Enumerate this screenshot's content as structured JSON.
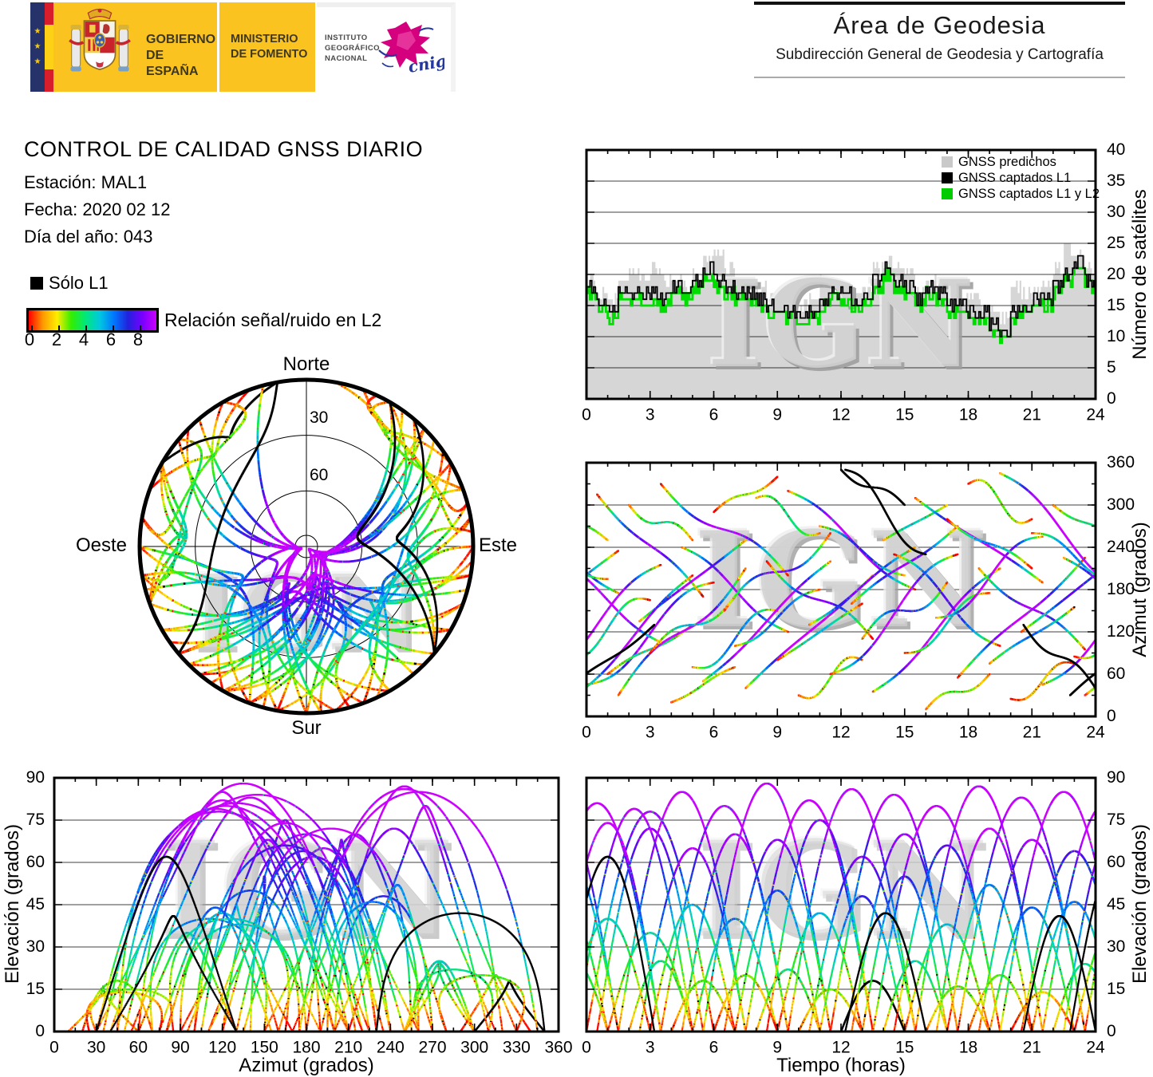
{
  "logo_bar": {
    "gobierno_line1": "GOBIERNO",
    "gobierno_line2": "DE ESPAÑA",
    "ministerio_line1": "MINISTERIO",
    "ministerio_line2": "DE FOMENTO",
    "ign_line1": "INSTITUTO",
    "ign_line2": "GEOGRÁFICO",
    "ign_line3": "NACIONAL",
    "cnig_text": "cnig"
  },
  "area_header": {
    "title": "Área de Geodesia",
    "subtitle": "Subdirección General de Geodesia y Cartografía"
  },
  "report": {
    "title": "CONTROL DE CALIDAD GNSS DIARIO",
    "station": "Estación: MAL1",
    "date": "Fecha: 2020 02 12",
    "doy": "Día del año: 043"
  },
  "l1_legend": "Sólo L1",
  "colorbar": {
    "label": "Relación señal/ruido en L2",
    "ticks": [
      "0",
      "2",
      "4",
      "6",
      "8"
    ],
    "stops": [
      "#ff0000",
      "#ff9900",
      "#ffee00",
      "#33ee00",
      "#00e87a",
      "#00c8e0",
      "#0077ff",
      "#2222dd",
      "#7700ff",
      "#cc00ff"
    ]
  },
  "skyplot_labels": {
    "north": "Norte",
    "south": "Sur",
    "west": "Oeste",
    "east": "Este",
    "ring30": "30",
    "ring60": "60"
  },
  "count_legend": [
    {
      "label": "GNSS predichos",
      "color": "#c9c9c9"
    },
    {
      "label": "GNSS captados L1",
      "color": "#000000"
    },
    {
      "label": "GNSS captados L1 y L2",
      "color": "#00cc00"
    }
  ],
  "watermark": "IGN",
  "axis_titles": {
    "count_y": "Número de satélites",
    "az_y": "Azimut (grados)",
    "elaz_x": "Azimut (grados)",
    "elaz_y": "Elevación (grados)",
    "eltime_x": "Tiempo (horas)",
    "eltime_y": "Elevación (grados)"
  },
  "chart_data": [
    {
      "id": "sat_count",
      "type": "area",
      "x": {
        "min": 0,
        "max": 24,
        "ticks": [
          0,
          3,
          6,
          9,
          12,
          15,
          18,
          21,
          24
        ],
        "minor_step": 1
      },
      "y": {
        "min": 0,
        "max": 40,
        "ticks": [
          0,
          5,
          10,
          15,
          20,
          25,
          30,
          35,
          40
        ],
        "label": "Número de satélites"
      },
      "legend_position": "top-right",
      "grid": "horizontal",
      "series_t_step_hours": 0.5,
      "series": [
        {
          "name": "GNSS predichos",
          "color": "#d6d6d6",
          "style": "filled-steps",
          "values": [
            19,
            17,
            16,
            19,
            21,
            19,
            21,
            19,
            19,
            18,
            20,
            23,
            23,
            21,
            18,
            18,
            18,
            16,
            15,
            15,
            15,
            16,
            19,
            18,
            19,
            17,
            17,
            21,
            22,
            21,
            20,
            17,
            19,
            18,
            18,
            16,
            17,
            15,
            14,
            13,
            18,
            17,
            17,
            18,
            21,
            24,
            23,
            21,
            20
          ]
        },
        {
          "name": "GNSS captados L1",
          "color": "#000000",
          "style": "steps",
          "values": [
            18,
            16,
            14,
            17,
            17,
            17,
            17,
            16,
            18,
            17,
            19,
            21,
            19,
            18,
            17,
            17,
            16,
            15,
            14,
            14,
            14,
            14,
            16,
            17,
            17,
            15,
            16,
            19,
            21,
            19,
            18,
            16,
            18,
            17,
            15,
            15,
            14,
            14,
            12,
            11,
            14,
            15,
            16,
            16,
            18,
            20,
            22,
            19,
            19
          ]
        },
        {
          "name": "GNSS captados L1 y L2",
          "color": "#00dd00",
          "style": "steps",
          "values": [
            17,
            15,
            13,
            16,
            16,
            16,
            16,
            15,
            17,
            16,
            18,
            20,
            18,
            17,
            16,
            16,
            15,
            14,
            13,
            13,
            13,
            13,
            15,
            16,
            16,
            14,
            15,
            18,
            20,
            18,
            17,
            15,
            17,
            16,
            14,
            14,
            13,
            13,
            11,
            10,
            13,
            14,
            15,
            15,
            17,
            19,
            21,
            18,
            18
          ]
        }
      ]
    },
    {
      "id": "skyplot",
      "type": "scatter",
      "projection": "polar-elevation",
      "rings_deg": [
        30,
        60
      ],
      "center_ring_deg": 84,
      "labels": {
        "top": "Norte",
        "bottom": "Sur",
        "left": "Oeste",
        "right": "Este"
      },
      "tracks_ref": "satellite_passes",
      "color_by": "snr_l2_colormap"
    },
    {
      "id": "az_time",
      "type": "scatter",
      "x": {
        "min": 0,
        "max": 24,
        "ticks": [
          0,
          3,
          6,
          9,
          12,
          15,
          18,
          21,
          24
        ],
        "minor_step": 1
      },
      "y": {
        "min": 0,
        "max": 360,
        "ticks": [
          0,
          60,
          120,
          180,
          240,
          300,
          360
        ],
        "minor_step": 30,
        "label": "Azimut (grados)"
      },
      "grid": "horizontal",
      "tracks_ref": "satellite_passes"
    },
    {
      "id": "el_az",
      "type": "scatter",
      "x": {
        "min": 0,
        "max": 360,
        "ticks": [
          0,
          30,
          60,
          90,
          120,
          150,
          180,
          210,
          240,
          270,
          300,
          330,
          360
        ],
        "minor_step": 15,
        "label": "Azimut (grados)"
      },
      "y": {
        "min": 0,
        "max": 90,
        "ticks": [
          0,
          15,
          30,
          45,
          60,
          75,
          90
        ],
        "label": "Elevación (grados)"
      },
      "grid": "horizontal",
      "tracks_ref": "satellite_passes"
    },
    {
      "id": "el_time",
      "type": "scatter",
      "x": {
        "min": 0,
        "max": 24,
        "ticks": [
          0,
          3,
          6,
          9,
          12,
          15,
          18,
          21,
          24
        ],
        "minor_step": 1,
        "label": "Tiempo (horas)"
      },
      "y": {
        "min": 0,
        "max": 90,
        "ticks": [
          0,
          15,
          30,
          45,
          60,
          75,
          90
        ],
        "label": "Elevación (grados)"
      },
      "grid": "horizontal",
      "tracks_ref": "satellite_passes"
    }
  ],
  "satellite_passes": {
    "format": "[start_hour, duration_hours, azimuth_start_deg, azimuth_end_deg, max_elevation_deg, l1_only_flag]",
    "passes": [
      [
        0.0,
        6,
        45,
        190,
        78,
        0
      ],
      [
        0.5,
        5,
        315,
        170,
        72,
        0
      ],
      [
        1.0,
        4,
        60,
        130,
        35,
        0
      ],
      [
        1.5,
        6,
        30,
        210,
        85,
        0
      ],
      [
        2.0,
        3,
        300,
        250,
        25,
        0
      ],
      [
        2.5,
        5,
        135,
        250,
        65,
        0
      ],
      [
        3.0,
        4,
        90,
        170,
        45,
        0
      ],
      [
        3.5,
        6,
        330,
        200,
        80,
        0
      ],
      [
        4.0,
        3,
        20,
        70,
        18,
        0
      ],
      [
        4.5,
        5,
        240,
        120,
        70,
        0
      ],
      [
        5.0,
        4,
        70,
        150,
        40,
        0
      ],
      [
        5.5,
        6,
        50,
        220,
        88,
        0
      ],
      [
        6.0,
        3,
        290,
        340,
        20,
        0
      ],
      [
        6.5,
        5,
        150,
        260,
        68,
        0
      ],
      [
        7.0,
        4,
        100,
        180,
        50,
        0
      ],
      [
        7.5,
        6,
        40,
        200,
        82,
        0
      ],
      [
        8.0,
        3,
        310,
        260,
        22,
        0
      ],
      [
        8.5,
        5,
        220,
        110,
        75,
        0
      ],
      [
        9.0,
        4,
        80,
        160,
        42,
        0
      ],
      [
        9.5,
        6,
        320,
        180,
        86,
        0
      ],
      [
        10.0,
        3,
        30,
        80,
        15,
        0
      ],
      [
        10.5,
        5,
        130,
        240,
        62,
        0
      ],
      [
        11.0,
        4,
        270,
        200,
        48,
        0
      ],
      [
        11.5,
        6,
        60,
        230,
        84,
        0
      ],
      [
        12.0,
        3,
        350,
        300,
        18,
        1
      ],
      [
        12.5,
        5,
        160,
        270,
        70,
        0
      ],
      [
        13.0,
        4,
        110,
        190,
        55,
        0
      ],
      [
        13.5,
        6,
        35,
        210,
        80,
        0
      ],
      [
        14.0,
        3,
        250,
        300,
        25,
        0
      ],
      [
        14.5,
        5,
        230,
        100,
        66,
        0
      ],
      [
        15.0,
        4,
        90,
        175,
        38,
        0
      ],
      [
        15.5,
        6,
        310,
        190,
        87,
        0
      ],
      [
        16.0,
        3,
        10,
        60,
        16,
        0
      ],
      [
        16.5,
        5,
        140,
        255,
        72,
        0
      ],
      [
        17.0,
        4,
        280,
        210,
        52,
        0
      ],
      [
        17.5,
        6,
        55,
        225,
        83,
        0
      ],
      [
        18.0,
        3,
        330,
        280,
        20,
        0
      ],
      [
        18.5,
        5,
        210,
        95,
        68,
        0
      ],
      [
        19.0,
        4,
        75,
        155,
        44,
        0
      ],
      [
        19.5,
        6,
        345,
        175,
        85,
        0
      ],
      [
        20.0,
        3,
        25,
        75,
        14,
        0
      ],
      [
        20.5,
        5,
        120,
        235,
        64,
        0
      ],
      [
        21.0,
        4,
        260,
        195,
        46,
        0
      ],
      [
        21.5,
        6,
        45,
        215,
        81,
        0
      ],
      [
        22.0,
        3,
        300,
        250,
        24,
        0
      ],
      [
        22.5,
        5,
        225,
        105,
        74,
        0
      ],
      [
        23.0,
        4,
        85,
        165,
        40,
        0
      ],
      [
        23.5,
        5.5,
        30,
        200,
        79,
        0
      ],
      [
        22.8,
        4.4,
        30,
        130,
        62,
        1
      ],
      [
        12.2,
        3.8,
        350,
        230,
        42,
        1
      ],
      [
        20.6,
        3.4,
        130,
        40,
        41,
        1
      ]
    ]
  }
}
